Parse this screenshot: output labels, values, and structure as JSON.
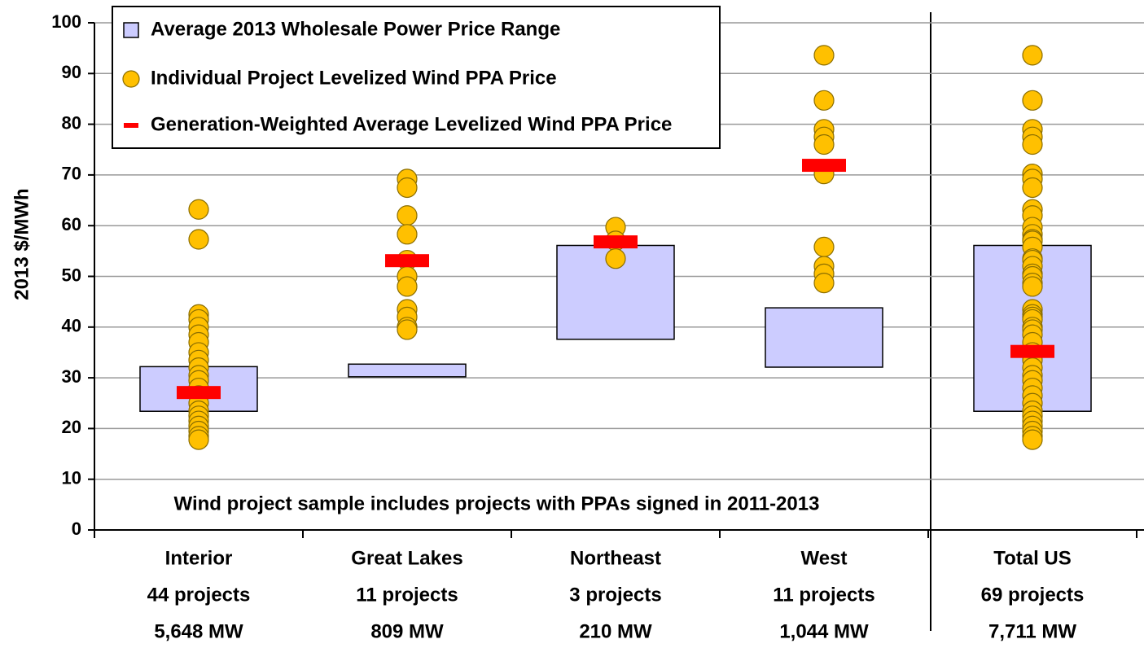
{
  "chart_data": {
    "type": "range-dot",
    "y_label": "2013 $/MWh",
    "annotation": "Wind project sample includes projects with PPAs signed in 2011-2013",
    "categories": [
      "Interior",
      "Great Lakes",
      "Northeast",
      "West",
      "Total US"
    ],
    "category_details": [
      [
        "44 projects",
        "5,648 MW"
      ],
      [
        "11 projects",
        "809 MW"
      ],
      [
        "3 projects",
        "210 MW"
      ],
      [
        "11 projects",
        "1,044 MW"
      ],
      [
        "69 projects",
        "7,711 MW"
      ]
    ],
    "ylim": [
      0,
      100
    ],
    "yticks": [
      0,
      10,
      20,
      30,
      40,
      50,
      60,
      70,
      80,
      90,
      100
    ],
    "grid": true,
    "series": [
      {
        "name": "Average 2013 Wholesale Power Price Range",
        "color": "#ccccff",
        "low": [
          23.4,
          30.2,
          37.6,
          32.1,
          23.4
        ],
        "high": [
          32.2,
          32.7,
          56.1,
          43.8,
          56.1
        ]
      },
      {
        "name": "Individual Project Levelized Wind PPA Price",
        "color": "#ffc000",
        "values": [
          [
            63.2,
            57.3,
            42.5,
            41.5,
            40.0,
            38.5,
            37.0,
            35.0,
            33.5,
            32.0,
            30.5,
            29.5,
            28.0,
            26.5,
            25.0,
            23.5,
            22.5,
            21.5,
            20.5,
            19.5,
            18.5,
            17.8
          ],
          [
            69.2,
            67.5,
            62.0,
            58.3,
            53.2,
            50.0,
            48.0,
            43.5,
            42.0,
            40.0,
            39.5
          ],
          [
            59.7,
            57.0,
            53.5
          ],
          [
            93.6,
            84.7,
            79.0,
            77.5,
            76.0,
            70.2,
            55.8,
            52.0,
            50.5,
            48.7
          ],
          [
            93.6,
            84.7,
            79.0,
            77.5,
            76.0,
            70.2,
            69.2,
            67.5,
            63.2,
            62.0,
            59.7,
            58.3,
            57.3,
            57.0,
            55.8,
            53.5,
            53.2,
            52.0,
            50.5,
            50.0,
            48.7,
            48.0,
            43.5,
            42.5,
            42.0,
            41.5,
            40.0,
            39.5,
            38.5,
            37.0,
            35.0,
            33.5,
            32.0,
            30.5,
            29.5,
            28.0,
            26.5,
            25.0,
            23.5,
            22.5,
            21.5,
            20.5,
            19.5,
            18.5,
            17.8
          ]
        ]
      },
      {
        "name": "Generation-Weighted Average Levelized Wind PPA Price",
        "color": "#ff0000",
        "values": [
          27.1,
          53.1,
          56.8,
          71.9,
          35.2
        ]
      }
    ]
  }
}
